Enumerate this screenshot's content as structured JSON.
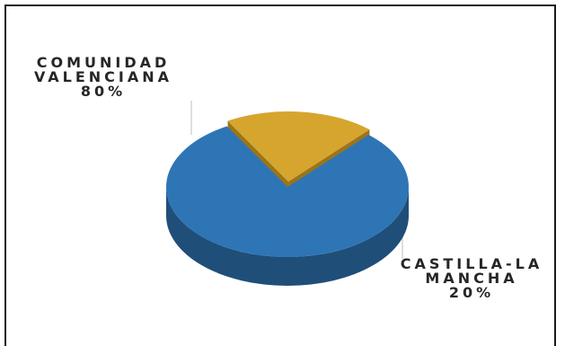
{
  "chart_data": {
    "type": "pie",
    "style": "3d-exploded",
    "slices": [
      {
        "label_lines": [
          "COMUNIDAD",
          "VALENCIANA"
        ],
        "value_label": "80%",
        "value": 80,
        "color": "#2e75b6",
        "side_color": "#1f4e79"
      },
      {
        "label_lines": [
          "CASTILLA-LA",
          "MANCHA"
        ],
        "value_label": "20%",
        "value": 20,
        "color": "#d6a52e",
        "side_color": "#9c7419"
      }
    ]
  }
}
